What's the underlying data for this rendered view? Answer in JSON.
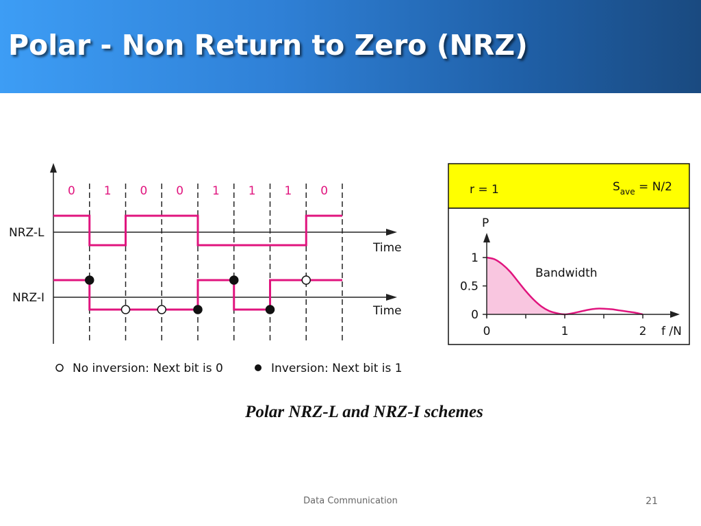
{
  "slide": {
    "title": "Polar - Non Return to Zero (NRZ)",
    "caption": "Polar NRZ-L and NRZ-I schemes",
    "footer": "Data Communication",
    "page_number": "21"
  },
  "colors": {
    "title_gradient_start": "#3d9df5",
    "title_gradient_end": "#1a4a80",
    "signal": "#e0147e",
    "bit_labels": "#e0147e",
    "box_header": "#ffff00",
    "area_fill": "#f9c6e0"
  },
  "diagram": {
    "bits": [
      "0",
      "1",
      "0",
      "0",
      "1",
      "1",
      "1",
      "0"
    ],
    "nrzl_label": "NRZ-L",
    "nrzi_label": "NRZ-I",
    "time_label_1": "Time",
    "time_label_2": "Time",
    "nrzl_levels": [
      1,
      -1,
      1,
      1,
      -1,
      -1,
      -1,
      1
    ],
    "nrzi_levels": [
      1,
      -1,
      -1,
      -1,
      1,
      -1,
      1,
      1
    ],
    "nrzi_transition_markers": [
      "inversion",
      "no-inversion",
      "no-inversion",
      "inversion",
      "inversion",
      "inversion",
      "no-inversion"
    ],
    "legend": {
      "no_inversion": "No inversion: Next bit is 0",
      "inversion": "Inversion: Next bit is 1"
    }
  },
  "chart_data": {
    "type": "area",
    "header_left": "r = 1",
    "header_right_main": "S",
    "header_right_sub": "ave",
    "header_right_rest": " = N/2",
    "ylabel": "P",
    "xlabel": "f /N",
    "annotation": "Bandwidth",
    "x_ticks": [
      "0",
      "1",
      "2"
    ],
    "y_ticks": [
      "1",
      "0.5",
      "0"
    ],
    "xlim": [
      0,
      2
    ],
    "ylim": [
      0,
      1.2
    ],
    "x": [
      0,
      0.1,
      0.2,
      0.3,
      0.4,
      0.5,
      0.6,
      0.7,
      0.8,
      0.9,
      1.0,
      1.1,
      1.2,
      1.3,
      1.4,
      1.5,
      1.6,
      1.7,
      1.8,
      1.9,
      2.0
    ],
    "y": [
      1.0,
      0.97,
      0.88,
      0.75,
      0.58,
      0.41,
      0.26,
      0.14,
      0.06,
      0.02,
      0.0,
      0.02,
      0.05,
      0.08,
      0.1,
      0.1,
      0.09,
      0.07,
      0.05,
      0.03,
      0.0
    ]
  }
}
